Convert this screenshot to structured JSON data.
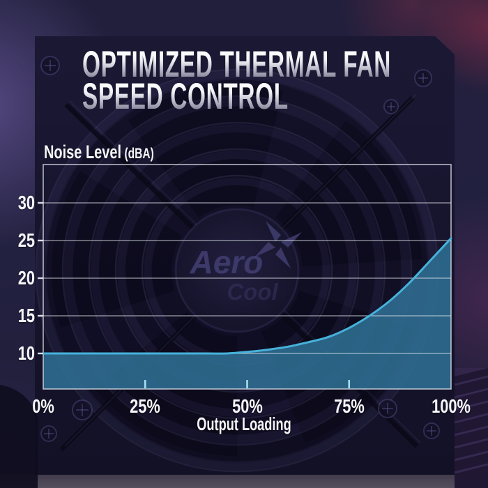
{
  "title": {
    "line1": "OPTIMIZED THERMAL FAN",
    "line2": "SPEED CONTROL"
  },
  "chart": {
    "y_axis": {
      "title": "Noise Level",
      "unit": "(dBA)",
      "tick_labels": [
        "30",
        "25",
        "20",
        "15",
        "10"
      ]
    },
    "x_axis": {
      "title": "Output Loading",
      "tick_labels": [
        "0%",
        "25%",
        "50%",
        "75%",
        "100%"
      ]
    }
  },
  "background": {
    "fan_logo_top": "Aero",
    "fan_logo_bottom": "Cool"
  },
  "colors": {
    "canvas_base": "#232140",
    "psu_body": "#17152e",
    "area_fill": "#2f6e93",
    "curve_line": "#46b2da",
    "gridline": "#e2e5ee",
    "frame": "#e2e5ee",
    "x_tick_mark": "#a4dff2",
    "label_text": "#f5f5f8",
    "title_silver_top": "#ffffff",
    "title_silver_bottom": "#8e8ea1",
    "glow_purple": "#846ec0",
    "glow_red": "#cd374e"
  },
  "chart_data": {
    "type": "area",
    "title": "Optimized Thermal Fan Speed Control",
    "xlabel": "Output Loading",
    "ylabel": "Noise Level (dBA)",
    "x_unit": "%",
    "x": [
      0,
      10,
      20,
      30,
      40,
      45,
      50,
      55,
      60,
      65,
      70,
      75,
      80,
      85,
      90,
      95,
      100
    ],
    "series": [
      {
        "name": "Noise Level (dBA)",
        "values": [
          10,
          10,
          10,
          10,
          10,
          10,
          10.2,
          10.5,
          10.9,
          11.5,
          12.2,
          13.4,
          15.0,
          17.0,
          19.5,
          22.4,
          25.3
        ]
      }
    ],
    "xlim": [
      0,
      100
    ],
    "ylim": [
      5.4,
      35
    ],
    "x_tick_values": [
      0,
      25,
      50,
      75,
      100
    ],
    "y_tick_values": [
      10,
      15,
      20,
      25,
      30
    ],
    "grid": "horizontal",
    "legend_position": "none"
  }
}
